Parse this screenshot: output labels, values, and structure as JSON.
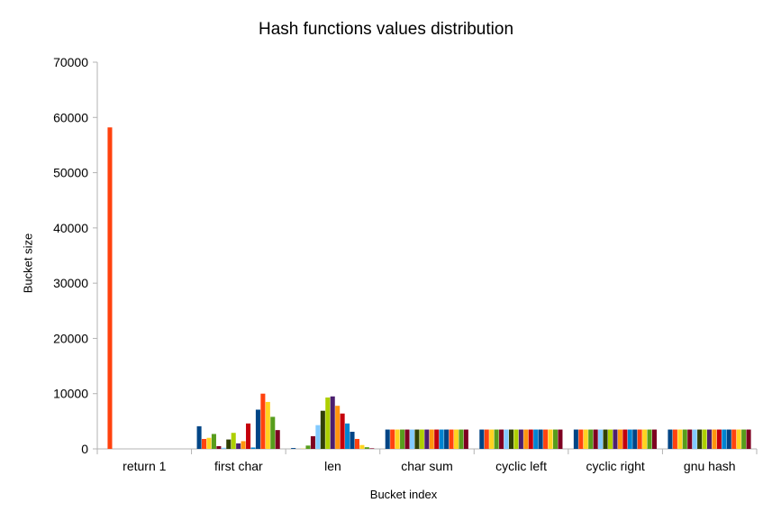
{
  "chart_data": {
    "type": "bar",
    "title": "Hash functions values distribution",
    "xlabel": "Bucket index",
    "ylabel": "Bucket size",
    "ylim": [
      0,
      70000
    ],
    "yticks": [
      0,
      10000,
      20000,
      30000,
      40000,
      50000,
      60000,
      70000
    ],
    "grid": false,
    "legend": "none",
    "categories": [
      "return 1",
      "first char",
      "len",
      "char sum",
      "cyclic left",
      "cyclic right",
      "gnu hash"
    ],
    "series_colors": [
      "#004586",
      "#ff420e",
      "#ffd320",
      "#579d1c",
      "#7e0021",
      "#83caff",
      "#314004",
      "#aecf00",
      "#4b1f6f",
      "#ff950e",
      "#c5000b",
      "#0084d1"
    ],
    "series": [
      {
        "values": [
          0,
          4100,
          150,
          3500,
          3500,
          3500,
          3500
        ]
      },
      {
        "values": [
          58200,
          1800,
          0,
          3500,
          3500,
          3500,
          3500
        ]
      },
      {
        "values": [
          0,
          2000,
          50,
          3500,
          3500,
          3500,
          3500
        ]
      },
      {
        "values": [
          0,
          2700,
          600,
          3500,
          3500,
          3500,
          3500
        ]
      },
      {
        "values": [
          0,
          500,
          2300,
          3500,
          3500,
          3500,
          3500
        ]
      },
      {
        "values": [
          0,
          200,
          4300,
          3500,
          3500,
          3500,
          3500
        ]
      },
      {
        "values": [
          0,
          1700,
          6900,
          3500,
          3500,
          3500,
          3500
        ]
      },
      {
        "values": [
          0,
          2900,
          9300,
          3500,
          3500,
          3500,
          3500
        ]
      },
      {
        "values": [
          0,
          1000,
          9500,
          3500,
          3500,
          3500,
          3500
        ]
      },
      {
        "values": [
          0,
          1400,
          7800,
          3500,
          3500,
          3500,
          3500
        ]
      },
      {
        "values": [
          0,
          4600,
          6400,
          3500,
          3500,
          3500,
          3500
        ]
      },
      {
        "values": [
          0,
          250,
          4600,
          3500,
          3500,
          3500,
          3500
        ]
      },
      {
        "values": [
          0,
          7100,
          3100,
          3500,
          3500,
          3500,
          3500
        ]
      },
      {
        "values": [
          0,
          10000,
          1800,
          3500,
          3500,
          3500,
          3500
        ]
      },
      {
        "values": [
          0,
          8500,
          700,
          3500,
          3500,
          3500,
          3500
        ]
      },
      {
        "values": [
          0,
          5800,
          300,
          3500,
          3500,
          3500,
          3500
        ]
      },
      {
        "values": [
          0,
          3400,
          100,
          3500,
          3500,
          3500,
          3500
        ]
      }
    ]
  }
}
